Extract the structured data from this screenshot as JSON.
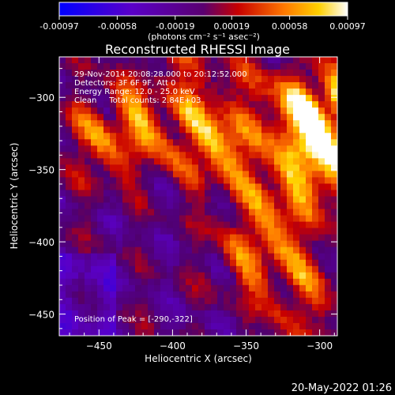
{
  "chart_data": {
    "type": "heatmap",
    "title": "Reconstructed RHESSI Image",
    "xlabel": "Heliocentric X (arcsec)",
    "ylabel": "Heliocentric Y (arcsec)",
    "xlim": [
      -477,
      -288
    ],
    "ylim": [
      -465,
      -272
    ],
    "xticks": [
      -450,
      -400,
      -350,
      -300
    ],
    "yticks": [
      -450,
      -400,
      -350,
      -300
    ],
    "colorbar": {
      "ticks": [
        "-0.00097",
        "-0.00058",
        "-0.00019",
        "0.00019",
        "0.00058",
        "0.00097"
      ],
      "range": [
        -0.00097,
        0.00097
      ],
      "unit_label": "(photons cm⁻² s⁻¹ asec⁻²)"
    },
    "annotations": [
      "29-Nov-2014 20:08:28.000 to 20:12:52.000",
      "Detectors: 3F 6F 9F, Att 0",
      "Energy Range: 12.0 - 25.0 keV",
      "Clean     Total counts: 2.84E+03"
    ],
    "peak_label": "Position of Peak = [-290,-322]",
    "peak": [
      -290,
      -322
    ],
    "bright_regions": [
      {
        "x": -372,
        "y": -333,
        "v": 1.0
      },
      {
        "x": -295,
        "y": -303,
        "v": 0.95
      },
      {
        "x": -290,
        "y": -322,
        "v": 1.0
      },
      {
        "x": -340,
        "y": -405,
        "v": 0.85
      },
      {
        "x": -445,
        "y": -330,
        "v": 0.7
      },
      {
        "x": -320,
        "y": -360,
        "v": 0.75
      },
      {
        "x": -415,
        "y": -310,
        "v": 0.6
      },
      {
        "x": -310,
        "y": -440,
        "v": 0.55
      }
    ]
  },
  "footer": {
    "date": "20-May-2022 01:26"
  }
}
